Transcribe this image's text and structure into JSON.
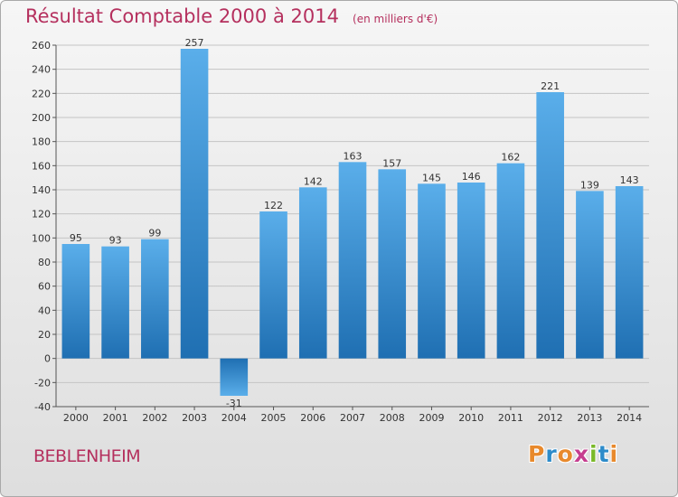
{
  "header": {
    "title": "Résultat Comptable 2000 à 2014",
    "unit": "(en milliers d'€)"
  },
  "footer": {
    "commune": "BEBLENHEIM",
    "brand": "Proxiti"
  },
  "colors": {
    "title": "#b5305e",
    "bar_light": "#5aaeea",
    "bar_dark": "#1f6fb2",
    "grid": "#c4c4c4",
    "brand_letters": [
      "#e8892c",
      "#2d8bc9",
      "#e8892c",
      "#c63e8f",
      "#7ab929",
      "#2d8bc9",
      "#e8892c"
    ]
  },
  "chart_data": {
    "type": "bar",
    "title": "Résultat Comptable 2000 à 2014",
    "subtitle": "(en milliers d'€)",
    "xlabel": "",
    "ylabel": "",
    "categories": [
      "2000",
      "2001",
      "2002",
      "2003",
      "2004",
      "2005",
      "2006",
      "2007",
      "2008",
      "2009",
      "2010",
      "2011",
      "2012",
      "2013",
      "2014"
    ],
    "values": [
      95,
      93,
      99,
      257,
      -31,
      122,
      142,
      163,
      157,
      145,
      146,
      162,
      221,
      139,
      143
    ],
    "ylim": [
      -40,
      260
    ],
    "yticks": [
      -40,
      -20,
      0,
      20,
      40,
      60,
      80,
      100,
      120,
      140,
      160,
      180,
      200,
      220,
      240,
      260
    ],
    "grid": true,
    "data_labels": true
  }
}
